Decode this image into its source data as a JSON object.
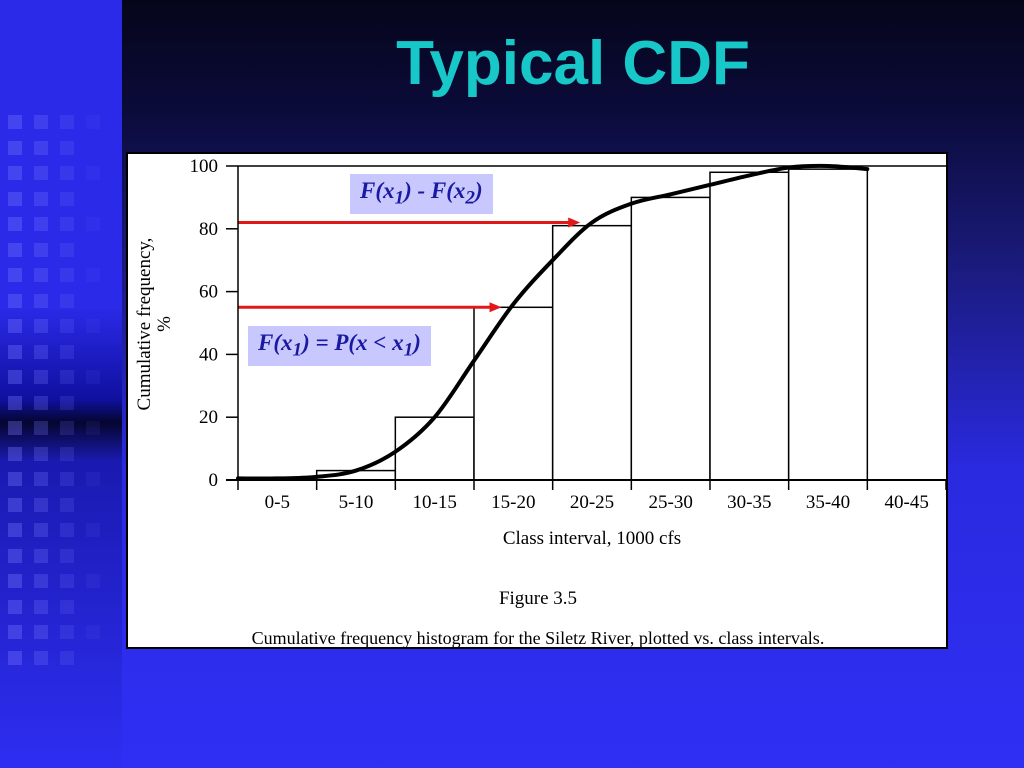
{
  "slide": {
    "title": "Typical CDF"
  },
  "figure": {
    "label": "Figure 3.5",
    "caption": "Cumulative frequency histogram for the Siletz River, plotted vs. class intervals."
  },
  "annotations": {
    "difference": {
      "f1": "F(x",
      "sub1": "1",
      "mid": ") - F(x",
      "sub2": "2",
      "end": ")"
    },
    "definition": {
      "f": "F(x",
      "sub1": "1",
      "mid": ") = P(x < x",
      "sub2": "1",
      "end": ")"
    }
  },
  "colors": {
    "title": "#18c8c8",
    "arrow": "#e01818",
    "annotation_bg": "#c8c8ff",
    "annotation_text": "#1a1aa0"
  },
  "chart_data": {
    "type": "bar",
    "categories": [
      "0-5",
      "5-10",
      "10-15",
      "15-20",
      "20-25",
      "25-30",
      "30-35",
      "35-40",
      "40-45"
    ],
    "values": [
      0,
      3,
      20,
      55,
      81,
      90,
      98,
      99,
      0
    ],
    "ylabel": "Cumulative frequency, %",
    "xlabel": "Class interval, 1000 cfs",
    "yticks": [
      0,
      20,
      40,
      60,
      80,
      100
    ],
    "ylim": [
      0,
      100
    ],
    "cdf_curve": {
      "x": [
        0,
        0.5,
        1,
        1.5,
        2,
        2.5,
        3,
        3.5,
        4,
        4.5,
        5,
        5.5,
        6,
        6.5,
        7,
        7.5,
        8
      ],
      "y": [
        0.5,
        0.5,
        1,
        3,
        9,
        20,
        38,
        56,
        70,
        82,
        88,
        91,
        94,
        97,
        99.5,
        100,
        99
      ]
    },
    "arrows": [
      {
        "y": 82,
        "x_end": 4.35
      },
      {
        "y": 55,
        "x_end": 3.35
      }
    ]
  }
}
